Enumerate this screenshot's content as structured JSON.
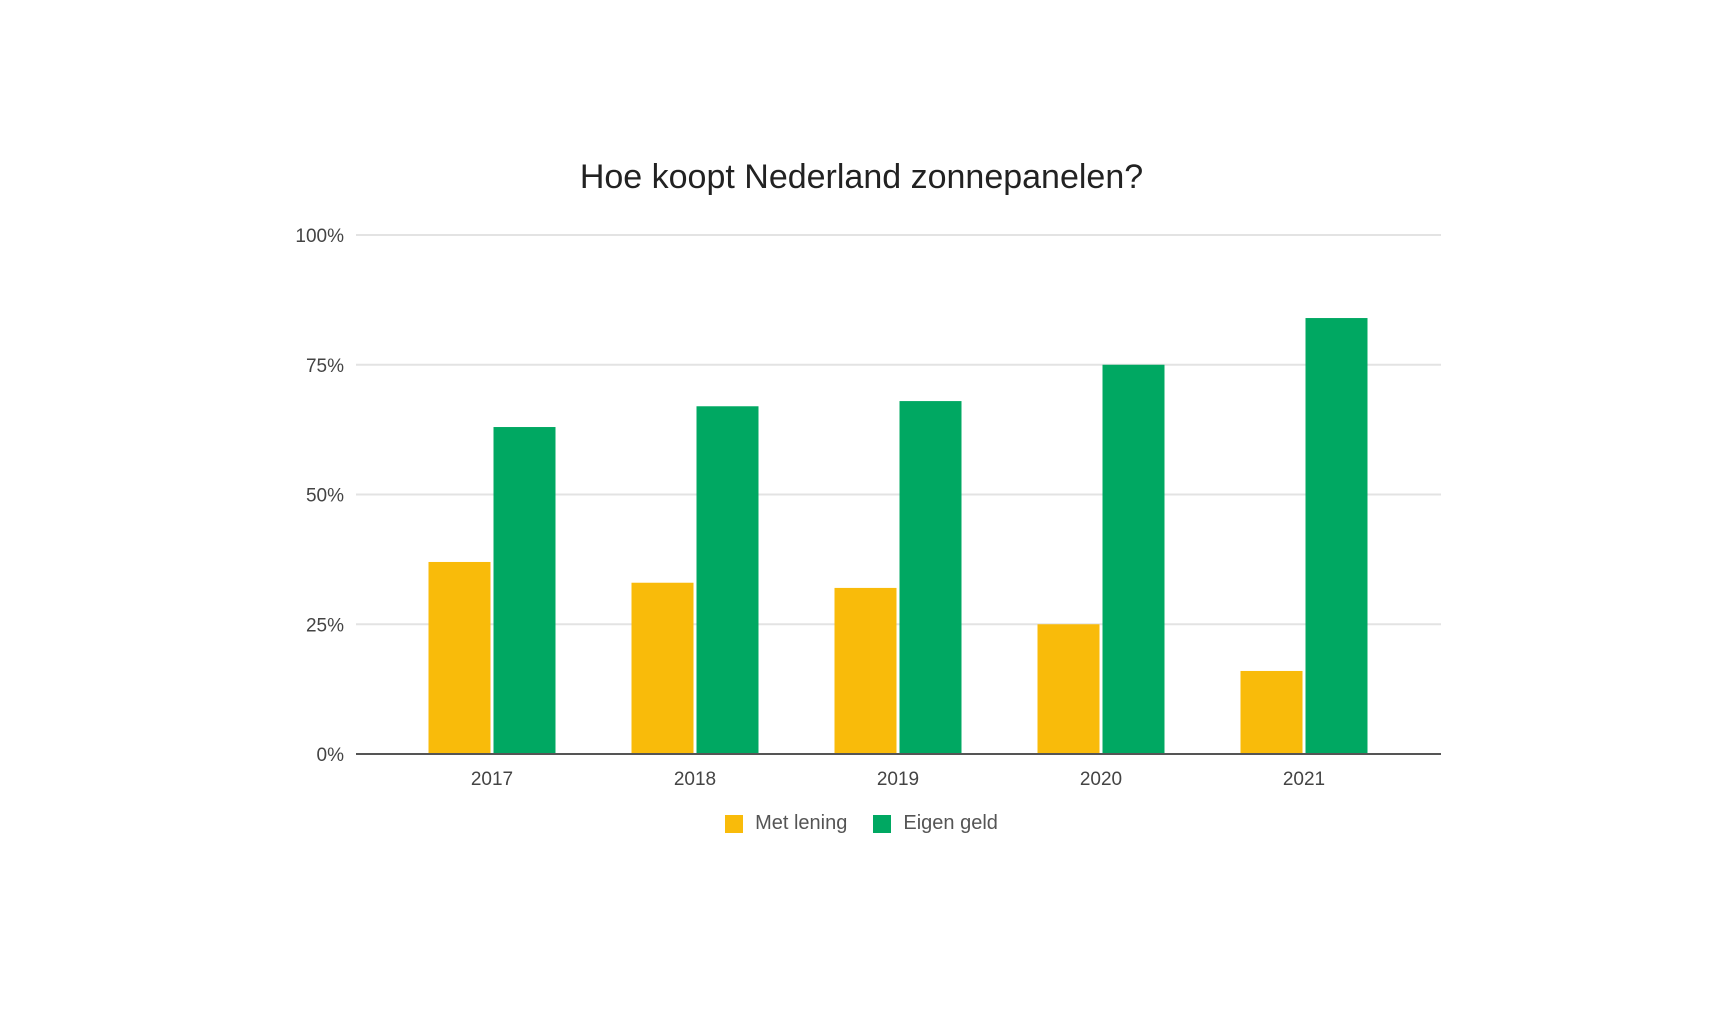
{
  "chart_data": {
    "type": "bar",
    "title": "Hoe koopt Nederland zonnepanelen?",
    "xlabel": "",
    "ylabel": "",
    "categories": [
      "2017",
      "2018",
      "2019",
      "2020",
      "2021"
    ],
    "series": [
      {
        "name": "Met lening",
        "color": "#F9BB0A",
        "values": [
          37,
          33,
          32,
          25,
          16
        ]
      },
      {
        "name": "Eigen geld",
        "color": "#00A862",
        "values": [
          63,
          67,
          68,
          75,
          84
        ]
      }
    ],
    "ylim": [
      0,
      100
    ],
    "yticks": [
      0,
      25,
      50,
      75,
      100
    ],
    "ytick_labels": [
      "0%",
      "25%",
      "50%",
      "75%",
      "100%"
    ],
    "grid": true,
    "legend_position": "bottom"
  }
}
